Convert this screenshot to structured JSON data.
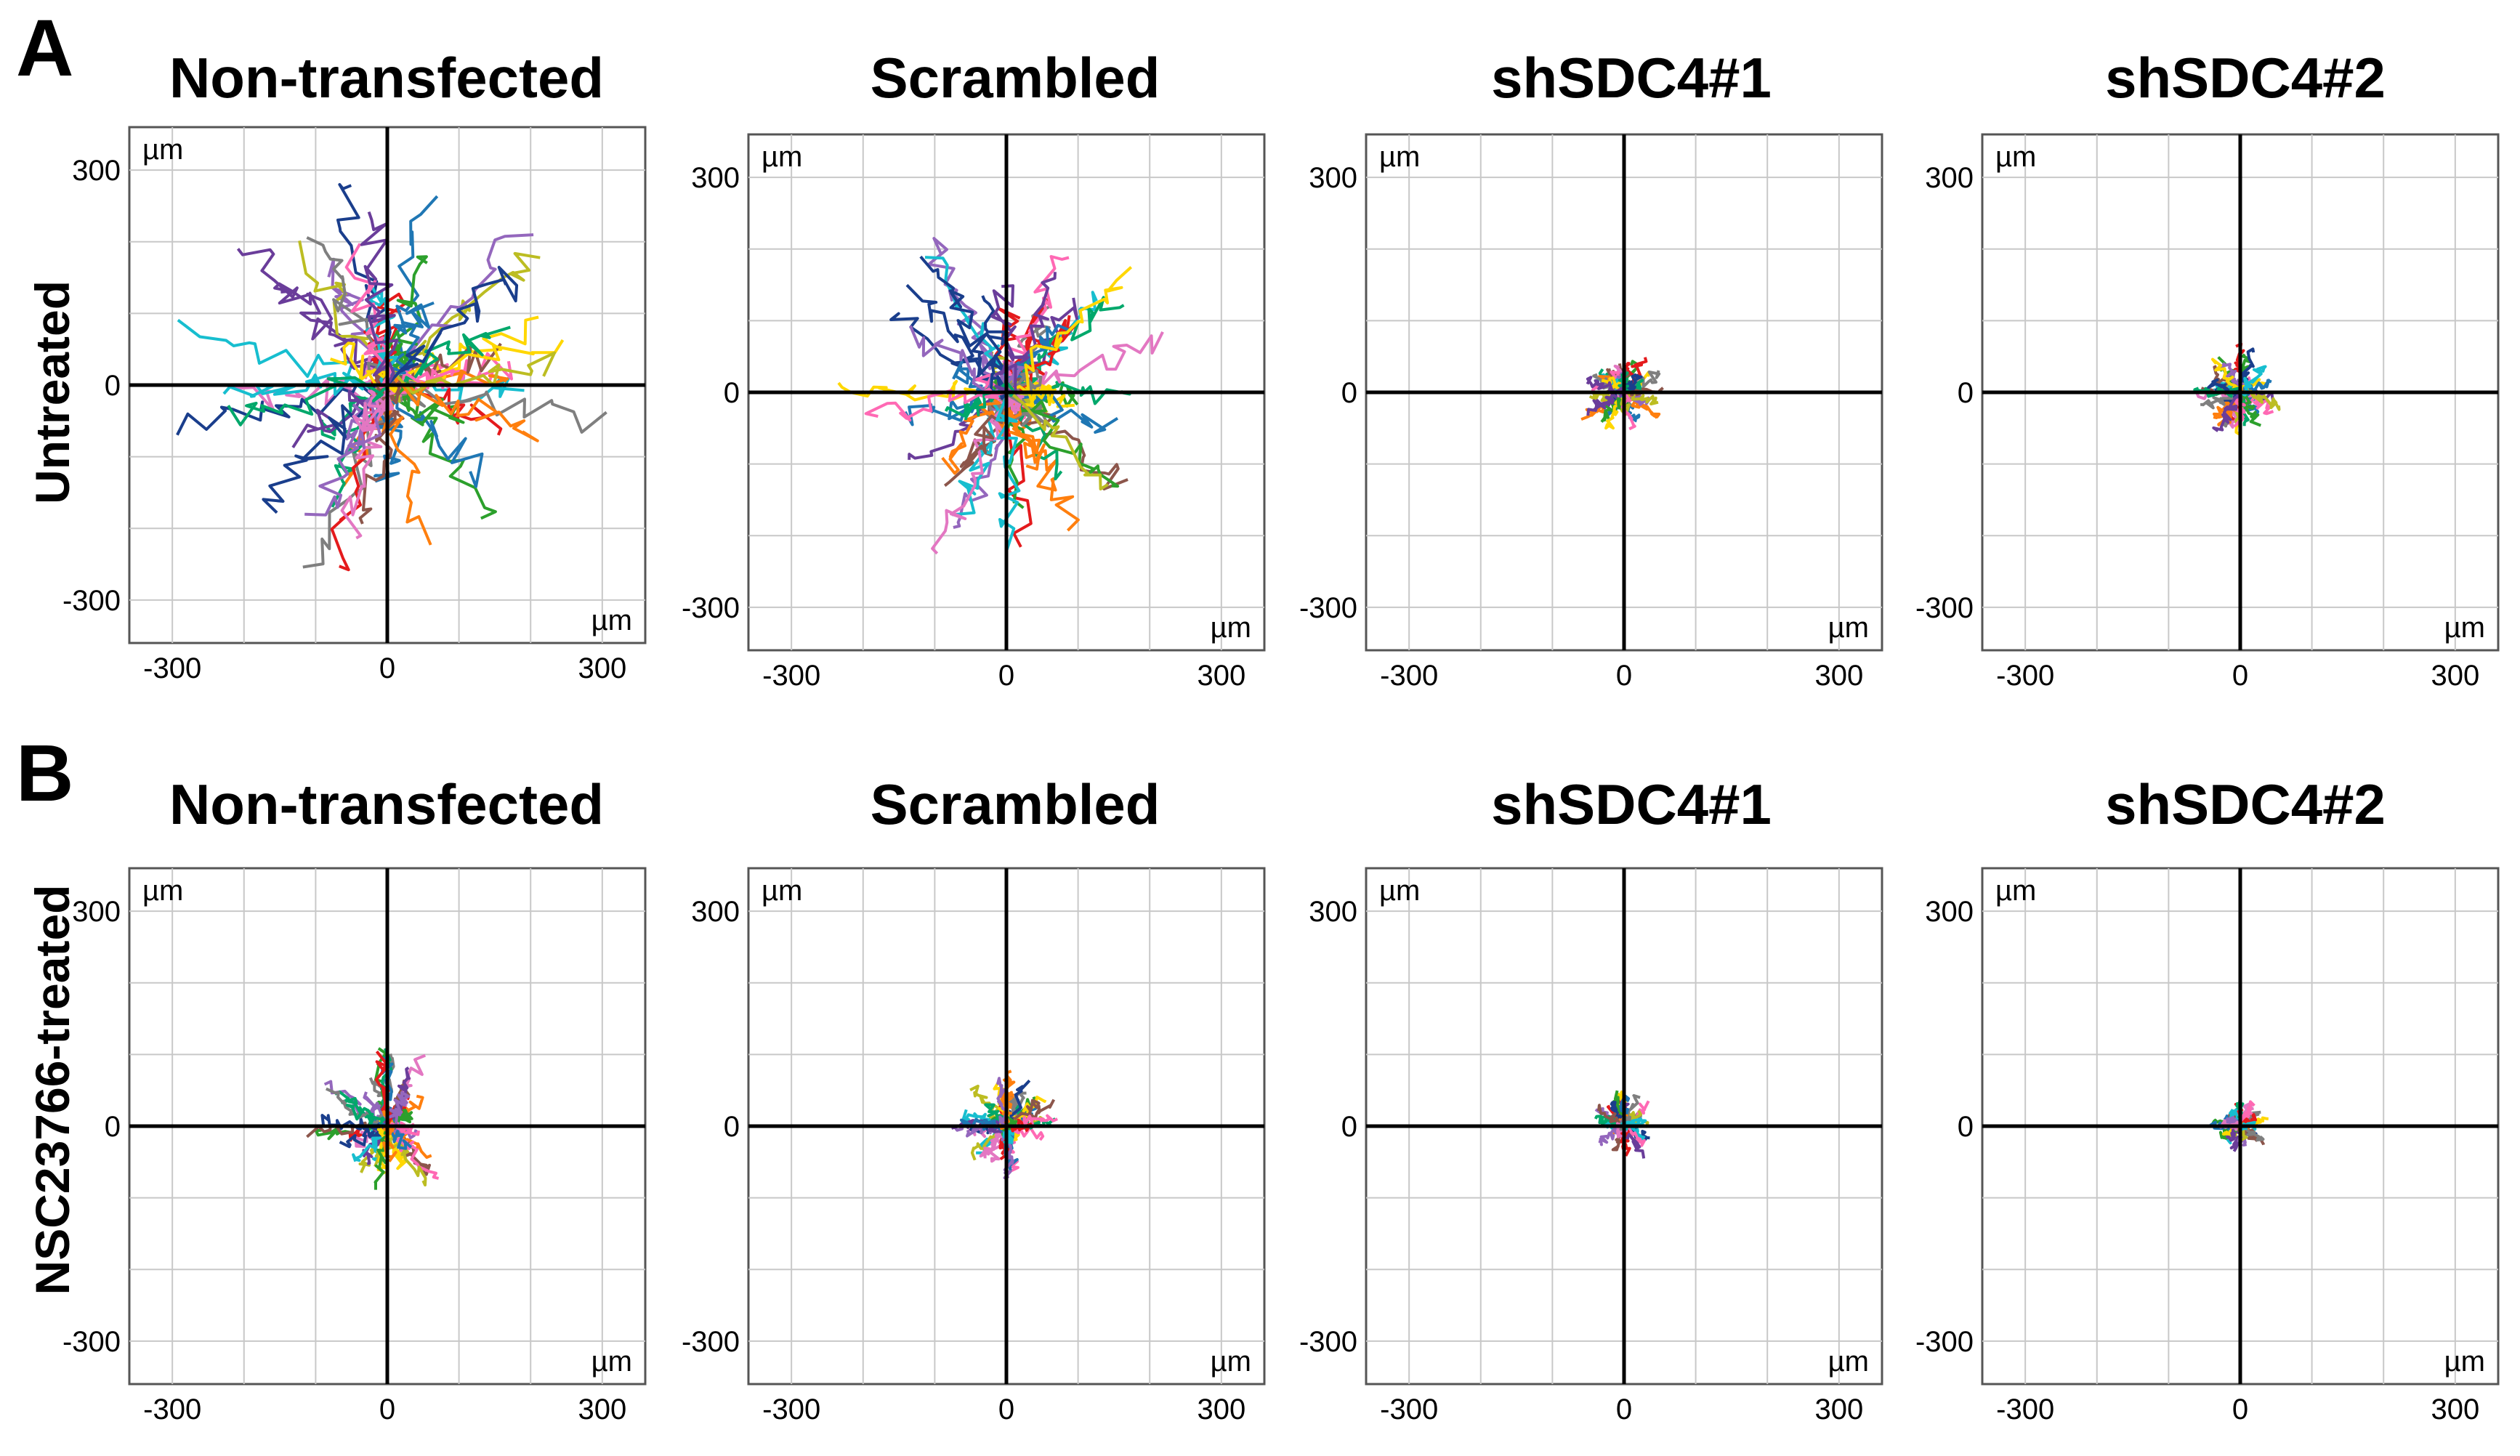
{
  "figure": {
    "panels": [
      {
        "letter": "A",
        "row_label": "Untreated"
      },
      {
        "letter": "B",
        "row_label": "NSC23766-treated"
      }
    ],
    "column_titles": [
      "Non-transfected",
      "Scrambled",
      "shSDC4#1",
      "shSDC4#2"
    ]
  },
  "chart_data": {
    "type": "line",
    "description_units": "µm",
    "axis": {
      "xlim": [
        -360,
        360
      ],
      "ylim": [
        -360,
        360
      ],
      "ticks": [
        -300,
        0,
        300
      ],
      "grid_step": 100,
      "unit_label": "µm"
    },
    "plots": [
      {
        "row": "Untreated",
        "column": "Non-transfected",
        "spread": 1.0,
        "n_tracks": 60,
        "seed": 11
      },
      {
        "row": "Untreated",
        "column": "Scrambled",
        "spread": 0.8,
        "n_tracks": 60,
        "seed": 23
      },
      {
        "row": "Untreated",
        "column": "shSDC4#1",
        "spread": 0.22,
        "n_tracks": 45,
        "seed": 37
      },
      {
        "row": "Untreated",
        "column": "shSDC4#2",
        "spread": 0.22,
        "n_tracks": 45,
        "seed": 41
      },
      {
        "row": "NSC23766-treated",
        "column": "Non-transfected",
        "spread": 0.35,
        "n_tracks": 50,
        "seed": 53
      },
      {
        "row": "NSC23766-treated",
        "column": "Scrambled",
        "spread": 0.25,
        "n_tracks": 50,
        "seed": 67
      },
      {
        "row": "NSC23766-treated",
        "column": "shSDC4#1",
        "spread": 0.16,
        "n_tracks": 40,
        "seed": 71
      },
      {
        "row": "NSC23766-treated",
        "column": "shSDC4#2",
        "spread": 0.13,
        "n_tracks": 40,
        "seed": 83
      }
    ],
    "track_colors": [
      "#e41a1c",
      "#1f77b4",
      "#2ca02c",
      "#ff7f0e",
      "#9467bd",
      "#8c564b",
      "#e377c2",
      "#7f7f7f",
      "#bcbd22",
      "#17becf",
      "#1a3e8c",
      "#ffd700",
      "#00a86b",
      "#ff69b4",
      "#6a3d9a"
    ]
  }
}
